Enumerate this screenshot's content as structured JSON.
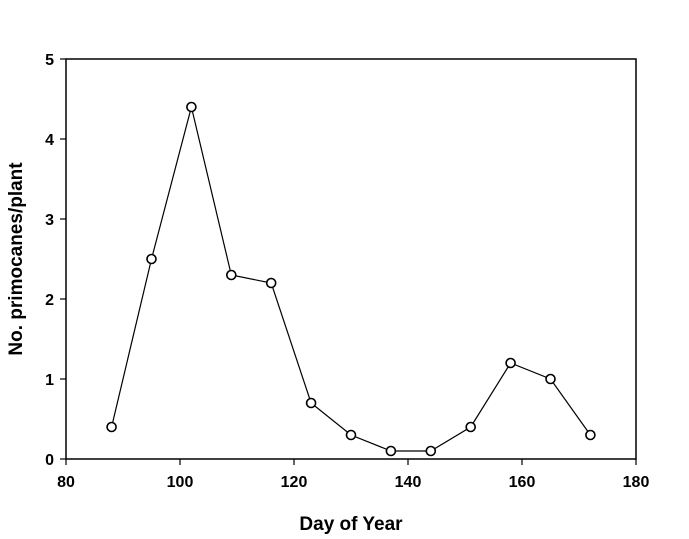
{
  "chart_data": {
    "type": "line",
    "title": "",
    "xlabel": "Day of Year",
    "ylabel": "No. primocanes/plant",
    "xlim": [
      80,
      180
    ],
    "ylim": [
      0,
      5
    ],
    "xticks": [
      80,
      100,
      120,
      140,
      160,
      180
    ],
    "yticks": [
      0,
      1,
      2,
      3,
      4,
      5
    ],
    "grid": false,
    "legend": "none",
    "series": [
      {
        "marker": "open-circle",
        "color": "#000000",
        "x": [
          88,
          95,
          102,
          109,
          116,
          123,
          130,
          137,
          144,
          151,
          158,
          165,
          172
        ],
        "y": [
          0.4,
          2.5,
          4.4,
          2.3,
          2.2,
          0.7,
          0.3,
          0.1,
          0.1,
          0.4,
          1.2,
          1.0,
          0.3
        ]
      }
    ]
  }
}
